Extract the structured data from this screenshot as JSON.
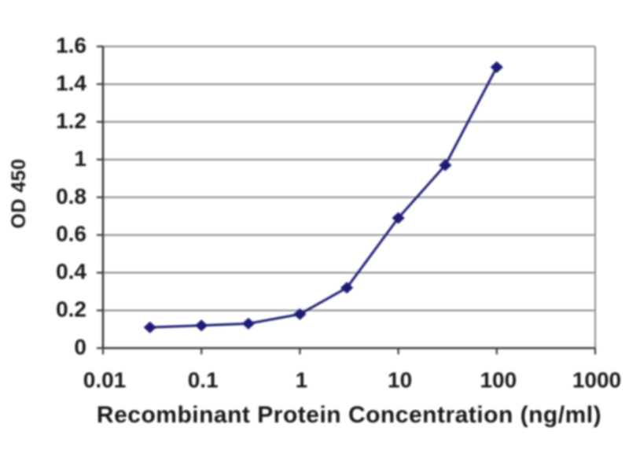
{
  "chart_data": {
    "type": "line",
    "title": "",
    "xlabel": "Recombinant Protein Concentration (ng/ml)",
    "ylabel": "OD 450",
    "x_scale": "log",
    "xlim": [
      0.01,
      1000
    ],
    "ylim": [
      0,
      1.6
    ],
    "x_tick_values": [
      0.01,
      0.1,
      1,
      10,
      100,
      1000
    ],
    "x_tick_labels": [
      "0.01",
      "0.1",
      "1",
      "10",
      "100",
      "1000"
    ],
    "y_tick_values": [
      0,
      0.2,
      0.4,
      0.6,
      0.8,
      1,
      1.2,
      1.4,
      1.6
    ],
    "y_tick_labels": [
      "0",
      "0.2",
      "0.4",
      "0.6",
      "0.8",
      "1",
      "1.2",
      "1.4",
      "1.6"
    ],
    "grid": "horizontal",
    "legend": "none",
    "series": [
      {
        "name": "OD 450",
        "x": [
          0.03,
          0.1,
          0.3,
          1,
          3,
          10,
          30,
          100
        ],
        "y": [
          0.11,
          0.12,
          0.13,
          0.18,
          0.32,
          0.69,
          0.97,
          1.49
        ],
        "marker": "diamond",
        "color": "#1c1c74"
      }
    ],
    "colors": {
      "series_line": "#1c1c74",
      "series_marker": "#1c1c74",
      "gridline": "#8a8a8a",
      "plot_border": "#8a8a8a",
      "axis_line": "#3a3a3a",
      "text": "#1a1a1a",
      "background": "#ffffff"
    }
  }
}
